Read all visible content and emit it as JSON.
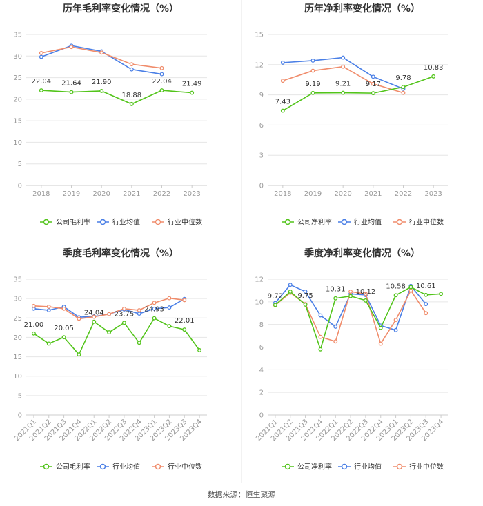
{
  "footer": {
    "source": "数据来源：恒生聚源"
  },
  "colors": {
    "company": "#52c41a",
    "avg": "#4a7fe6",
    "median": "#f08c6b"
  },
  "chart_data": [
    {
      "type": "line",
      "title": "历年毛利率变化情况（%）",
      "categories": [
        "2018",
        "2019",
        "2020",
        "2021",
        "2022",
        "2023"
      ],
      "ylim": [
        0,
        35
      ],
      "yticks": [
        "0",
        "5",
        "10",
        "15",
        "20",
        "25",
        "30",
        "35"
      ],
      "rotate_labels": false,
      "legend": [
        "公司毛利率",
        "行业均值",
        "行业中位数"
      ],
      "series": [
        {
          "name": "公司毛利率",
          "values": [
            22.04,
            21.64,
            21.9,
            18.88,
            22.04,
            21.49
          ]
        },
        {
          "name": "行业均值",
          "values": [
            29.8,
            32.4,
            31.1,
            26.9,
            25.8,
            null
          ]
        },
        {
          "name": "行业中位数",
          "values": [
            30.7,
            32.1,
            30.8,
            28.1,
            27.2,
            null
          ]
        }
      ],
      "data_labels": [
        {
          "i": 0,
          "text": "22.04"
        },
        {
          "i": 1,
          "text": "21.64"
        },
        {
          "i": 2,
          "text": "21.90"
        },
        {
          "i": 3,
          "text": "18.88"
        },
        {
          "i": 4,
          "text": "22.04"
        },
        {
          "i": 5,
          "text": "21.49"
        }
      ]
    },
    {
      "type": "line",
      "title": "历年净利率变化情况（%）",
      "categories": [
        "2018",
        "2019",
        "2020",
        "2021",
        "2022",
        "2023"
      ],
      "ylim": [
        0,
        15
      ],
      "yticks": [
        "0",
        "3",
        "6",
        "9",
        "12",
        "15"
      ],
      "rotate_labels": false,
      "legend": [
        "公司净利率",
        "行业均值",
        "行业中位数"
      ],
      "series": [
        {
          "name": "公司净利率",
          "values": [
            7.43,
            9.19,
            9.21,
            9.17,
            9.78,
            10.83
          ]
        },
        {
          "name": "行业均值",
          "values": [
            12.2,
            12.4,
            12.7,
            10.8,
            9.6,
            null
          ]
        },
        {
          "name": "行业中位数",
          "values": [
            10.4,
            11.4,
            11.8,
            10.1,
            9.2,
            null
          ]
        }
      ],
      "data_labels": [
        {
          "i": 0,
          "text": "7.43"
        },
        {
          "i": 1,
          "text": "9.19"
        },
        {
          "i": 2,
          "text": "9.21"
        },
        {
          "i": 3,
          "text": "9.17"
        },
        {
          "i": 4,
          "text": "9.78"
        },
        {
          "i": 5,
          "text": "10.83"
        }
      ]
    },
    {
      "type": "line",
      "title": "季度毛利率变化情况（%）",
      "categories": [
        "2021Q1",
        "2021Q2",
        "2021Q3",
        "2021Q4",
        "2022Q1",
        "2022Q2",
        "2022Q3",
        "2022Q4",
        "2023Q1",
        "2023Q2",
        "2023Q3",
        "2023Q4"
      ],
      "ylim": [
        0,
        35
      ],
      "yticks": [
        "0",
        "5",
        "10",
        "15",
        "20",
        "25",
        "30",
        "35"
      ],
      "rotate_labels": true,
      "legend": [
        "公司毛利率",
        "行业均值",
        "行业中位数"
      ],
      "series": [
        {
          "name": "公司毛利率",
          "values": [
            21.0,
            18.4,
            20.05,
            15.6,
            24.04,
            21.3,
            23.75,
            18.6,
            24.93,
            22.9,
            22.01,
            16.7
          ]
        },
        {
          "name": "行业均值",
          "values": [
            27.4,
            27.0,
            27.9,
            25.2,
            25.4,
            26.0,
            27.2,
            26.1,
            27.4,
            27.7,
            29.9,
            null
          ]
        },
        {
          "name": "行业中位数",
          "values": [
            28.1,
            27.9,
            27.4,
            24.8,
            25.3,
            26.0,
            27.4,
            27.0,
            28.9,
            30.1,
            29.6,
            null
          ]
        }
      ],
      "data_labels": [
        {
          "i": 0,
          "text": "21.00"
        },
        {
          "i": 2,
          "text": "20.05"
        },
        {
          "i": 4,
          "text": "24.04"
        },
        {
          "i": 6,
          "text": "23.75"
        },
        {
          "i": 8,
          "text": "24.93"
        },
        {
          "i": 10,
          "text": "22.01"
        }
      ]
    },
    {
      "type": "line",
      "title": "季度净利率变化情况（%）",
      "categories": [
        "2021Q1",
        "2021Q2",
        "2021Q3",
        "2021Q4",
        "2022Q1",
        "2022Q2",
        "2022Q3",
        "2022Q4",
        "2023Q1",
        "2023Q2",
        "2023Q3",
        "2023Q4"
      ],
      "ylim": [
        0,
        12
      ],
      "yticks": [
        "0",
        "2",
        "4",
        "6",
        "8",
        "10",
        "12"
      ],
      "rotate_labels": true,
      "legend": [
        "公司净利率",
        "行业均值",
        "行业中位数"
      ],
      "series": [
        {
          "name": "公司净利率",
          "values": [
            9.72,
            10.9,
            9.75,
            5.8,
            10.31,
            10.5,
            10.12,
            7.7,
            10.58,
            11.3,
            10.61,
            10.7
          ]
        },
        {
          "name": "行业均值",
          "values": [
            9.9,
            11.5,
            10.9,
            8.8,
            7.8,
            10.7,
            10.6,
            7.9,
            7.5,
            11.4,
            9.8,
            null
          ]
        },
        {
          "name": "行业中位数",
          "values": [
            9.7,
            10.8,
            9.8,
            6.9,
            6.5,
            10.9,
            10.7,
            6.3,
            8.4,
            11.0,
            9.0,
            null
          ]
        }
      ],
      "data_labels": [
        {
          "i": 0,
          "text": "9.72"
        },
        {
          "i": 2,
          "text": "9.75"
        },
        {
          "i": 4,
          "text": "10.31"
        },
        {
          "i": 6,
          "text": "10.12"
        },
        {
          "i": 8,
          "text": "10.58"
        },
        {
          "i": 10,
          "text": "10.61"
        }
      ]
    }
  ]
}
